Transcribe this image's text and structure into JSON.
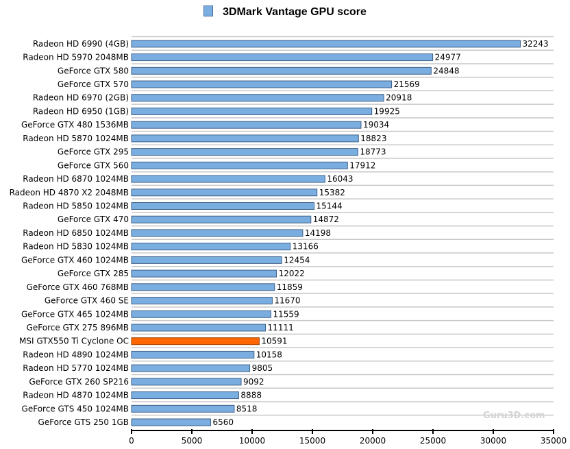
{
  "chart_data": {
    "type": "bar",
    "orientation": "horizontal",
    "title": "3DMark Vantage GPU score",
    "legend": [
      "3DMark Vantage GPU score"
    ],
    "legend_placement": "top",
    "categories": [
      "Radeon HD 6990 (4GB)",
      "Radeon HD 5970 2048MB",
      "GeForce GTX 580",
      "GeForce GTX 570",
      "Radeon HD 6970 (2GB)",
      "Radeon HD 6950 (1GB)",
      "GeForce GTX 480 1536MB",
      "Radeon HD 5870 1024MB",
      "GeForce GTX 295",
      "GeForce GTX 560",
      "Radeon HD 6870 1024MB",
      "Radeon HD 4870 X2 2048MB",
      "Radeon HD 5850 1024MB",
      "GeForce GTX 470",
      "Radeon HD 6850 1024MB",
      "Radeon HD 5830 1024MB",
      "GeForce GTX 460 1024MB",
      "GeForce GTX 285",
      "GeForce GTX 460 768MB",
      "GeForce GTX 460 SE",
      "GeForce GTX 465 1024MB",
      "GeForce GTX 275 896MB",
      "MSI GTX550 Ti Cyclone OC",
      "Radeon HD 4890 1024MB",
      "Radeon HD 5770 1024MB",
      "GeForce GTX 260 SP216",
      "Radeon HD 4870 1024MB",
      "GeForce GTS 450 1024MB",
      "GeForce GTS 250 1GB"
    ],
    "values": [
      32243,
      24977,
      24848,
      21569,
      20918,
      19925,
      19034,
      18823,
      18773,
      17912,
      16043,
      15382,
      15144,
      14872,
      14198,
      13166,
      12454,
      12022,
      11859,
      11670,
      11559,
      11111,
      10591,
      10158,
      9805,
      9092,
      8888,
      8518,
      6560
    ],
    "highlight_index": 22,
    "xlim": [
      0,
      35000
    ],
    "xticks": [
      0,
      5000,
      10000,
      15000,
      20000,
      25000,
      30000,
      35000
    ],
    "xlabel": "",
    "ylabel": "",
    "grid": true,
    "colors": {
      "bar": "#7aaee0",
      "bar_border": "#3d5f87",
      "highlight": "#ff6600",
      "highlight_border": "#a33f00",
      "grid": "#c8c8c8"
    },
    "watermark": "Guru3D.com"
  }
}
